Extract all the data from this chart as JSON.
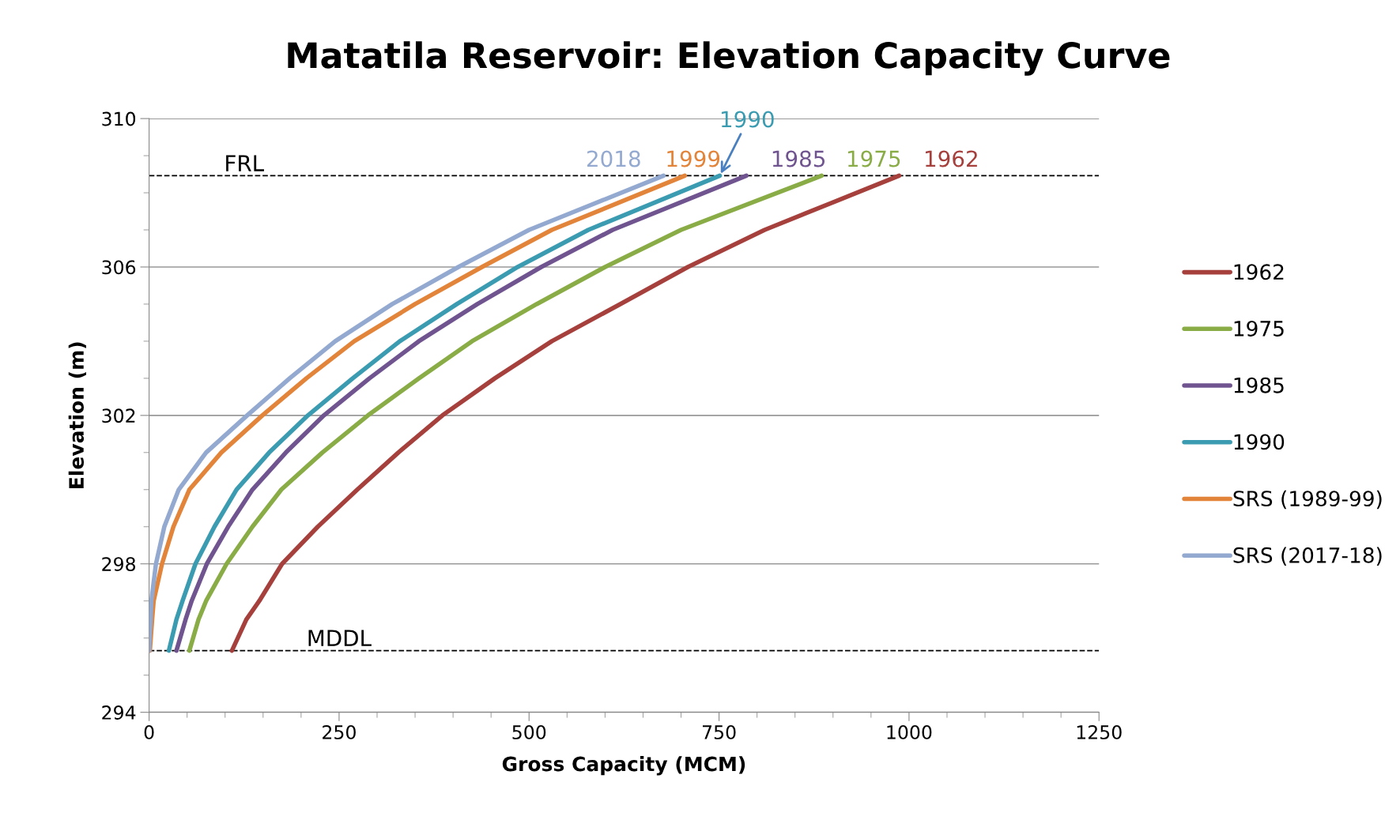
{
  "chart_data": {
    "type": "line",
    "title": "Matatila Reservoir: Elevation Capacity Curve",
    "xlabel": "Gross Capacity (MCM)",
    "ylabel": "Elevation (m)",
    "xlim": [
      0,
      1250
    ],
    "xticks": [
      0,
      250,
      500,
      750,
      1000,
      1250
    ],
    "ylim": [
      294,
      310
    ],
    "yticks": [
      294,
      298,
      302,
      306,
      310
    ],
    "grid": "y",
    "legend": "right",
    "marker": "none",
    "line_style": "solid",
    "series": [
      {
        "name": "1962",
        "color": "#a5403d",
        "x": [
          109,
          128,
          145,
          175,
          222,
          274,
          328,
          386,
          455,
          530,
          620,
          709,
          810,
          987
        ],
        "values": [
          295.66,
          296.5,
          297,
          298,
          299,
          300,
          301,
          302,
          303,
          304,
          305,
          306,
          307,
          308.46
        ]
      },
      {
        "name": "1975",
        "color": "#8aac46",
        "x": [
          53,
          65,
          75,
          102,
          136,
          174,
          228,
          288,
          355,
          425,
          510,
          600,
          700,
          885
        ],
        "values": [
          295.66,
          296.5,
          297,
          298,
          299,
          300,
          301,
          302,
          303,
          304,
          305,
          306,
          307,
          308.46
        ]
      },
      {
        "name": "1985",
        "color": "#6f548f",
        "x": [
          36,
          48,
          56,
          76,
          104,
          136,
          180,
          230,
          290,
          355,
          432,
          516,
          610,
          786
        ],
        "values": [
          295.66,
          296.5,
          297,
          298,
          299,
          300,
          301,
          302,
          303,
          304,
          305,
          306,
          307,
          308.46
        ]
      },
      {
        "name": "1990",
        "color": "#3b9bb0",
        "x": [
          26,
          36,
          44,
          61,
          86,
          115,
          158,
          209,
          268,
          330,
          405,
          485,
          578,
          751
        ],
        "values": [
          295.66,
          296.5,
          297,
          298,
          299,
          300,
          301,
          302,
          303,
          304,
          305,
          306,
          307,
          308.46
        ]
      },
      {
        "name": "SRS (1989-99)",
        "color": "#e2843a",
        "x": [
          1,
          4,
          6,
          17,
          32,
          53,
          95,
          149,
          207,
          270,
          350,
          438,
          530,
          705
        ],
        "values": [
          295.66,
          296.5,
          297,
          298,
          299,
          300,
          301,
          302,
          303,
          304,
          305,
          306,
          307,
          308.46
        ]
      },
      {
        "name": "SRS (2017-18)",
        "color": "#93a9d0",
        "x": [
          0,
          2,
          3,
          9,
          20,
          39,
          75,
          129,
          185,
          245,
          320,
          407,
          500,
          677
        ],
        "values": [
          295.66,
          296.5,
          297,
          298,
          299,
          300,
          301,
          302,
          303,
          304,
          305,
          306,
          307,
          308.46
        ]
      }
    ],
    "ref_lines": [
      {
        "axis": "y",
        "value": 308.46,
        "label": "FRL",
        "color": "#000000",
        "line_style": "dashed"
      },
      {
        "axis": "y",
        "value": 295.66,
        "label": "MDDL",
        "color": "#000000",
        "line_style": "dashed"
      }
    ],
    "annotations": [
      {
        "text": "1962",
        "x": 987,
        "y": 308.46
      },
      {
        "text": "1975",
        "x": 885,
        "y": 308.46
      },
      {
        "text": "1985",
        "x": 786,
        "y": 308.46
      },
      {
        "text": "1990",
        "x": 751,
        "y": 308.46
      },
      {
        "text": "1999",
        "x": 705,
        "y": 308.46
      },
      {
        "text": "2018",
        "x": 677,
        "y": 308.46
      }
    ]
  }
}
